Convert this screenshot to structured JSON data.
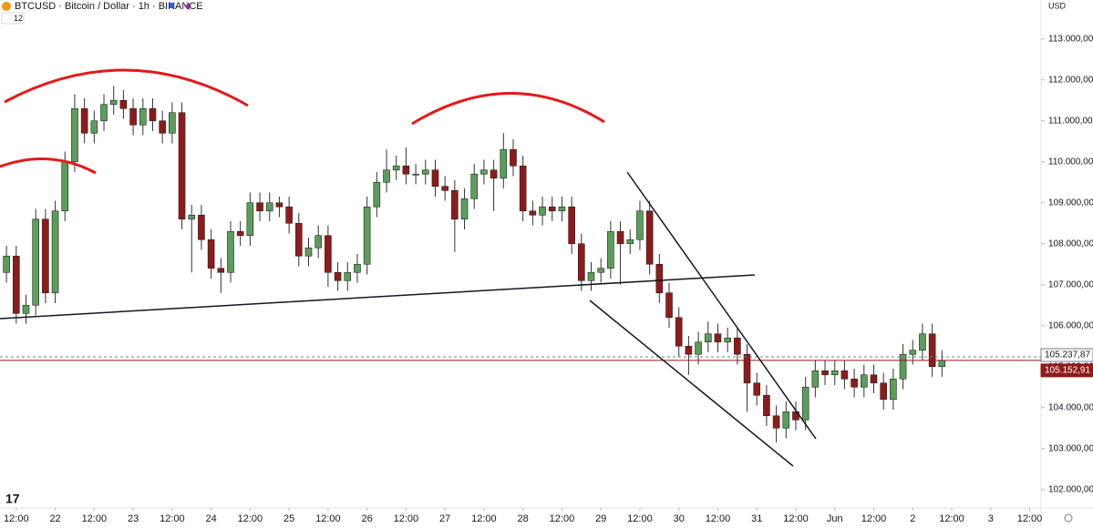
{
  "header": {
    "symbol": "BTCUSD · Bitcoin / Dollar · 1h · BINANCE",
    "indicator_count": "12",
    "currency": "USD"
  },
  "chart_data": {
    "type": "candlestick",
    "up_color": "#5a9e5a",
    "down_color": "#8e1b1b",
    "x": [
      -3,
      0,
      3,
      6,
      9,
      12,
      15,
      18,
      21,
      24,
      27,
      30,
      33,
      36,
      39,
      42,
      45,
      48,
      51,
      54,
      57,
      60,
      63,
      66,
      69,
      72,
      75,
      78,
      81,
      84,
      87,
      90,
      93,
      96,
      99,
      102,
      105,
      108,
      111,
      114,
      117,
      120,
      123,
      126,
      129,
      132,
      135,
      138,
      141,
      144,
      147,
      150,
      153,
      156,
      159,
      162,
      165,
      168,
      171,
      174,
      177,
      180,
      183,
      186,
      189,
      192,
      195,
      198,
      201,
      204,
      207,
      210,
      213,
      216,
      219,
      222,
      225,
      228,
      231,
      234,
      237,
      240,
      243,
      246,
      249,
      252,
      255,
      258,
      261,
      264,
      267,
      270,
      273,
      276,
      279,
      282,
      285
    ],
    "open": [
      107300,
      107700,
      106300,
      106500,
      108600,
      106800,
      108800,
      110000,
      111300,
      110700,
      111000,
      111400,
      111500,
      111300,
      110900,
      111300,
      111000,
      110700,
      111200,
      108600,
      108700,
      108100,
      107400,
      107300,
      108300,
      108200,
      109000,
      108800,
      109000,
      108900,
      108500,
      107700,
      107900,
      108200,
      107300,
      107100,
      107300,
      107500,
      108900,
      109500,
      109800,
      109900,
      109700,
      109700,
      109800,
      109400,
      109300,
      108600,
      109100,
      109700,
      109800,
      109600,
      110300,
      109900,
      108800,
      108700,
      108900,
      108800,
      108900,
      108000,
      107100,
      107300,
      107400,
      108300,
      108000,
      108100,
      108800,
      107500,
      106800,
      106200,
      105500,
      105300,
      105600,
      105800,
      105600,
      105700,
      105300,
      104600,
      104300,
      103800,
      103500,
      103900,
      103700,
      104500,
      104900,
      104800,
      104900,
      104700,
      104500,
      104800,
      104600,
      104200,
      104700,
      105300,
      105400,
      105800,
      105000
    ],
    "high": [
      107950,
      107950,
      106750,
      108850,
      108850,
      109050,
      110250,
      111650,
      111550,
      111250,
      111650,
      111850,
      111750,
      111550,
      111550,
      111550,
      111250,
      111450,
      111450,
      108950,
      108950,
      108350,
      107650,
      108550,
      108550,
      109250,
      109250,
      109250,
      109150,
      109150,
      108750,
      108150,
      108450,
      108450,
      107550,
      107550,
      107750,
      109150,
      109750,
      110300,
      110150,
      110350,
      109950,
      110050,
      110050,
      109650,
      109550,
      109350,
      109950,
      110050,
      110050,
      110700,
      110550,
      110150,
      109050,
      109150,
      109150,
      109150,
      109150,
      108250,
      107550,
      107650,
      108550,
      108550,
      108350,
      109050,
      109050,
      107750,
      107050,
      106450,
      105750,
      105850,
      106100,
      106050,
      105950,
      105950,
      105550,
      104850,
      104550,
      104050,
      104150,
      104150,
      104750,
      105150,
      105150,
      105150,
      105150,
      104950,
      105050,
      105050,
      104850,
      104950,
      105550,
      105650,
      106050,
      106050,
      105400
    ],
    "low": [
      107050,
      106050,
      106050,
      106250,
      106550,
      106550,
      108550,
      109750,
      110450,
      110450,
      110750,
      111150,
      111050,
      110650,
      110650,
      110750,
      110450,
      110450,
      108350,
      107300,
      107850,
      107150,
      106800,
      107050,
      107950,
      107950,
      108550,
      108550,
      108650,
      108250,
      107450,
      107450,
      107650,
      106950,
      106850,
      106850,
      107050,
      107250,
      108650,
      109250,
      109550,
      109450,
      109450,
      109450,
      109150,
      109050,
      107800,
      108350,
      108850,
      109450,
      108800,
      109350,
      109650,
      108550,
      108450,
      108450,
      108550,
      108550,
      107750,
      106850,
      106850,
      107050,
      107150,
      107000,
      107750,
      107850,
      107250,
      106550,
      105950,
      105250,
      104800,
      105050,
      105350,
      105350,
      105350,
      105050,
      103900,
      104050,
      103550,
      103150,
      103250,
      103450,
      103450,
      104250,
      104550,
      104550,
      104450,
      104250,
      104250,
      104350,
      103950,
      103950,
      104450,
      105050,
      105150,
      104750,
      104750
    ],
    "close": [
      107700,
      106300,
      106500,
      108600,
      106800,
      108800,
      110000,
      111300,
      110700,
      111000,
      111400,
      111500,
      111300,
      110900,
      111300,
      111000,
      110700,
      111200,
      108600,
      108700,
      108100,
      107400,
      107300,
      108300,
      108200,
      109000,
      108800,
      109000,
      108900,
      108500,
      107700,
      107900,
      108200,
      107300,
      107100,
      107300,
      107500,
      108900,
      109500,
      109800,
      109900,
      109700,
      109700,
      109800,
      109400,
      109300,
      108600,
      109100,
      109700,
      109800,
      109600,
      110300,
      109900,
      108800,
      108700,
      108900,
      108800,
      108900,
      108000,
      107100,
      107300,
      107400,
      108300,
      108000,
      108100,
      108800,
      107500,
      106800,
      106200,
      105500,
      105300,
      105600,
      105800,
      105600,
      105700,
      105300,
      104600,
      104300,
      103800,
      103500,
      103900,
      103700,
      104500,
      104900,
      104800,
      104900,
      104700,
      104500,
      104800,
      104600,
      104200,
      104700,
      105300,
      105400,
      105800,
      105000,
      105150
    ],
    "xlim": [
      -5,
      315.5
    ],
    "xticks": [
      {
        "value": 0,
        "label": "12:00"
      },
      {
        "value": 12,
        "label": "22"
      },
      {
        "value": 24,
        "label": "12:00"
      },
      {
        "value": 36,
        "label": "23"
      },
      {
        "value": 48,
        "label": "12:00"
      },
      {
        "value": 60,
        "label": "24"
      },
      {
        "value": 72,
        "label": "12:00"
      },
      {
        "value": 84,
        "label": "25"
      },
      {
        "value": 96,
        "label": "12:00"
      },
      {
        "value": 108,
        "label": "26"
      },
      {
        "value": 120,
        "label": "12:00"
      },
      {
        "value": 132,
        "label": "27"
      },
      {
        "value": 144,
        "label": "12:00"
      },
      {
        "value": 156,
        "label": "28"
      },
      {
        "value": 168,
        "label": "12:00"
      },
      {
        "value": 180,
        "label": "29"
      },
      {
        "value": 192,
        "label": "12:00"
      },
      {
        "value": 204,
        "label": "30"
      },
      {
        "value": 216,
        "label": "12:00"
      },
      {
        "value": 228,
        "label": "31"
      },
      {
        "value": 240,
        "label": "12:00"
      },
      {
        "value": 252,
        "label": "Jun"
      },
      {
        "value": 264,
        "label": "12:00"
      },
      {
        "value": 276,
        "label": "2"
      },
      {
        "value": 288,
        "label": "12:00"
      },
      {
        "value": 300,
        "label": "3"
      },
      {
        "value": 312,
        "label": "12:00"
      }
    ],
    "ylim": [
      101550,
      113950
    ],
    "yticks": [
      {
        "value": 102000,
        "label": "102.000,00"
      },
      {
        "value": 103000,
        "label": "103.000,00"
      },
      {
        "value": 104000,
        "label": "104.000,00"
      },
      {
        "value": 105000,
        "label": "105.000,00"
      },
      {
        "value": 106000,
        "label": "106.000,00"
      },
      {
        "value": 107000,
        "label": "107.000,00"
      },
      {
        "value": 108000,
        "label": "108.000,00"
      },
      {
        "value": 109000,
        "label": "109.000,00"
      },
      {
        "value": 110000,
        "label": "110.000,00"
      },
      {
        "value": 111000,
        "label": "111.000,00"
      },
      {
        "value": 112000,
        "label": "112.000,00"
      },
      {
        "value": 113000,
        "label": "113.000,00"
      }
    ],
    "price_lines": [
      {
        "value": 105237.87,
        "label": "105.237,87",
        "color": "#787b86"
      },
      {
        "value": 105152.91,
        "label": "105.152,91",
        "color": "#8e1b1b"
      }
    ]
  }
}
